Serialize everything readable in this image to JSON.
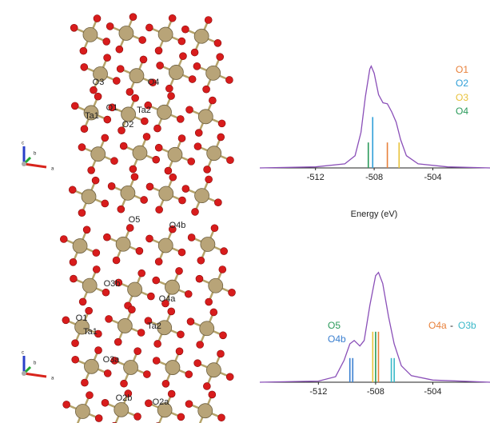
{
  "structures": [
    {
      "labels": [
        "O3",
        "O4",
        "O1",
        "Ta1",
        "Ta2",
        "O2"
      ],
      "axes": [
        "c",
        "b",
        "a"
      ]
    },
    {
      "labels": [
        "O5",
        "O4b",
        "O3b",
        "O4a",
        "O1",
        "Ta1",
        "Ta2",
        "O3a",
        "O2b",
        "O2a"
      ],
      "axes": [
        "c",
        "b",
        "a"
      ]
    }
  ],
  "chart_data": [
    {
      "type": "spectrum",
      "x_label": "Energy (eV)",
      "xlim": [
        -515.8,
        -500.1
      ],
      "xticks": [
        -512,
        -508,
        -504
      ],
      "ylim": [
        0,
        1.1
      ],
      "curve": {
        "color": "#8a4fb8",
        "x": [
          -515.8,
          -512,
          -510,
          -509.3,
          -508.9,
          -508.6,
          -508.3,
          -508.2,
          -508.0,
          -507.7,
          -507.4,
          -507.1,
          -506.8,
          -506.5,
          -506.2,
          -505.8,
          -505,
          -503,
          -500.1
        ],
        "values": [
          0,
          0.01,
          0.04,
          0.12,
          0.35,
          0.7,
          0.97,
          1.0,
          0.93,
          0.72,
          0.64,
          0.63,
          0.55,
          0.45,
          0.28,
          0.12,
          0.04,
          0.01,
          0
        ]
      },
      "series": [
        {
          "name": "O1",
          "color": "#e8803a",
          "x": [
            -507.1
          ],
          "values": [
            0.25
          ]
        },
        {
          "name": "O2",
          "color": "#2f9fd8",
          "x": [
            -508.1
          ],
          "values": [
            0.5
          ]
        },
        {
          "name": "O3",
          "color": "#e8c23a",
          "x": [
            -506.3
          ],
          "values": [
            0.25
          ]
        },
        {
          "name": "O4",
          "color": "#2a9a5a",
          "x": [
            -508.4
          ],
          "values": [
            0.25
          ]
        }
      ]
    },
    {
      "type": "spectrum",
      "xlim": [
        -516.1,
        -500.0
      ],
      "xticks": [
        -512,
        -508,
        -504
      ],
      "ylim": [
        0,
        1.1
      ],
      "legend_joiner": "-",
      "curve": {
        "color": "#8a4fb8",
        "x": [
          -516.1,
          -512,
          -510.8,
          -510.2,
          -509.8,
          -509.5,
          -509.1,
          -508.8,
          -508.4,
          -508.0,
          -507.8,
          -507.5,
          -507.1,
          -506.7,
          -506.2,
          -505.5,
          -504,
          -500
        ],
        "values": [
          0,
          0.01,
          0.05,
          0.2,
          0.35,
          0.38,
          0.33,
          0.38,
          0.7,
          0.97,
          1.0,
          0.9,
          0.6,
          0.35,
          0.15,
          0.06,
          0.02,
          0
        ]
      },
      "series": [
        {
          "name": "O5",
          "color": "#2a9a5a",
          "x": [
            -508.0
          ],
          "values": [
            0.46
          ]
        },
        {
          "name": "O4b",
          "color": "#3a7fd0",
          "x": [
            -509.8,
            -509.6
          ],
          "values": [
            0.22,
            0.22
          ]
        },
        {
          "name": "O4a",
          "color": "#e8803a",
          "x": [
            -507.8
          ],
          "values": [
            0.46
          ]
        },
        {
          "name": "O3b",
          "color": "#38b8c8",
          "x": [
            -506.9,
            -506.7
          ],
          "values": [
            0.22,
            0.22
          ]
        },
        {
          "color": "#e8c23a",
          "x": [
            -508.2
          ],
          "values": [
            0.46
          ]
        }
      ]
    }
  ]
}
